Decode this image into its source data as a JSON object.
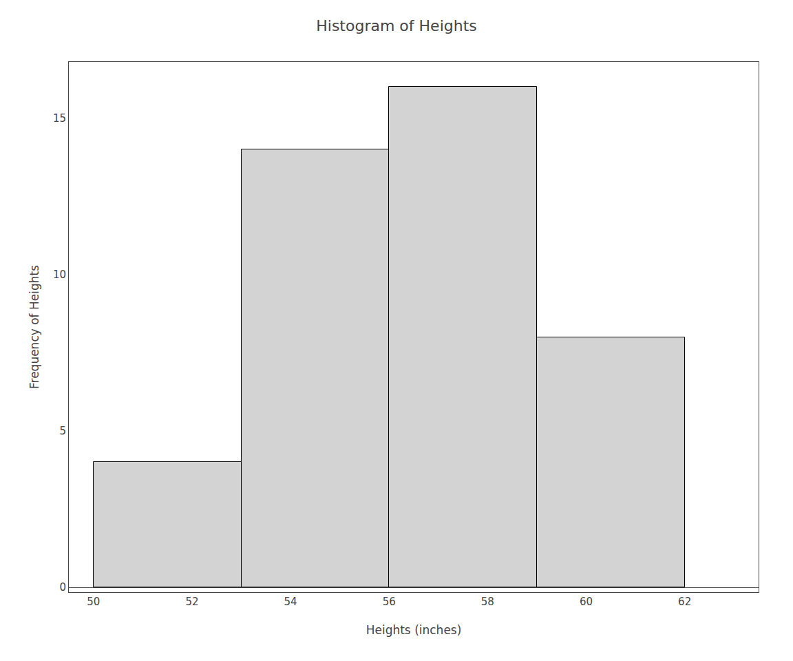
{
  "chart_data": {
    "type": "histogram",
    "title": "Histogram of Heights",
    "xlabel": "Heights (inches)",
    "ylabel": "Frequency of Heights",
    "bins": [
      50,
      53,
      56,
      59,
      62
    ],
    "values": [
      4,
      14,
      16,
      8
    ],
    "color": "#d3d3d3",
    "xlim": [
      49.5,
      63.5
    ],
    "ylim": [
      -0.15,
      16.8
    ],
    "xticks": [
      50,
      52,
      54,
      56,
      58,
      60,
      62
    ],
    "yticks": [
      0,
      5,
      10,
      15
    ],
    "grid": false
  }
}
